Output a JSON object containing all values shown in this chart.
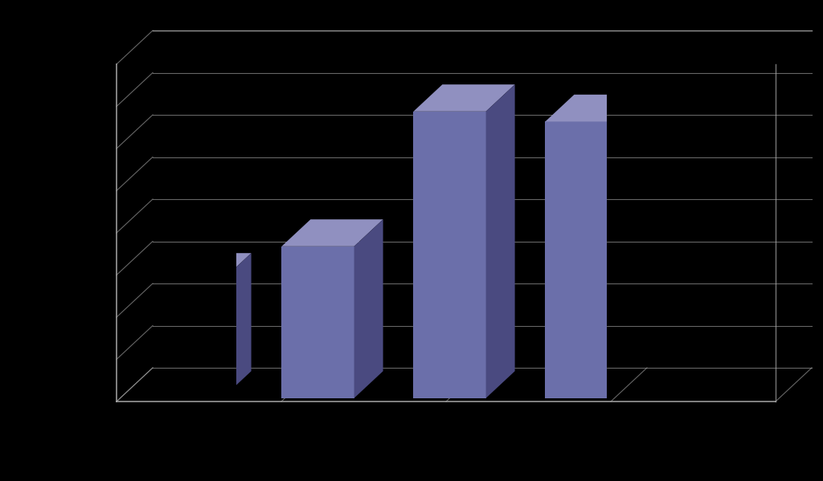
{
  "values": [
    35,
    45,
    85,
    82
  ],
  "bar_color_front": "#6b6faa",
  "bar_color_top": "#9090c0",
  "bar_color_side": "#4a4a80",
  "background_color": "#000000",
  "grid_color": "#aaaaaa",
  "ylim_max": 100,
  "figwidth": 10.24,
  "figheight": 5.99
}
